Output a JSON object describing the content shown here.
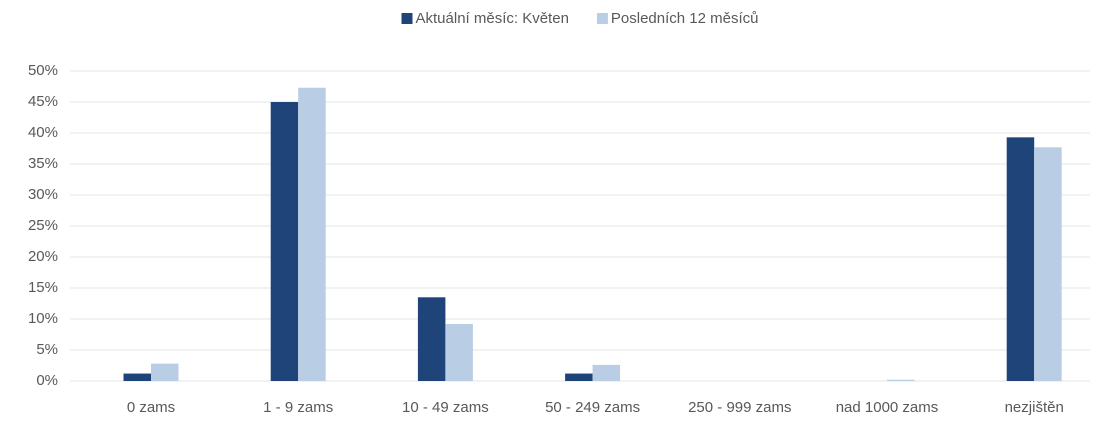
{
  "chart_data": {
    "type": "bar",
    "categories": [
      "0 zams",
      "1 - 9 zams",
      "10 - 49 zams",
      "50 - 249 zams",
      "250 - 999 zams",
      "nad 1000 zams",
      "nezjištěn"
    ],
    "series": [
      {
        "name": "Aktuální měsíc: Květen",
        "color": "#1f4479",
        "values": [
          1.2,
          45,
          13.5,
          1.2,
          0,
          0,
          39.3
        ]
      },
      {
        "name": "Posledních 12 měsíců",
        "color": "#b9cde5",
        "values": [
          2.8,
          47.3,
          9.2,
          2.6,
          0,
          0.2,
          37.7
        ]
      }
    ],
    "ylim": [
      0,
      50
    ],
    "yticks": [
      {
        "value": 0,
        "label": "0%"
      },
      {
        "value": 5,
        "label": "5%"
      },
      {
        "value": 10,
        "label": "10%"
      },
      {
        "value": 15,
        "label": "15%"
      },
      {
        "value": 20,
        "label": "20%"
      },
      {
        "value": 25,
        "label": "25%"
      },
      {
        "value": 30,
        "label": "30%"
      },
      {
        "value": 35,
        "label": "35%"
      },
      {
        "value": 40,
        "label": "40%"
      },
      {
        "value": 45,
        "label": "45%"
      },
      {
        "value": 50,
        "label": "50%"
      }
    ],
    "grid": true,
    "legend": "top"
  }
}
